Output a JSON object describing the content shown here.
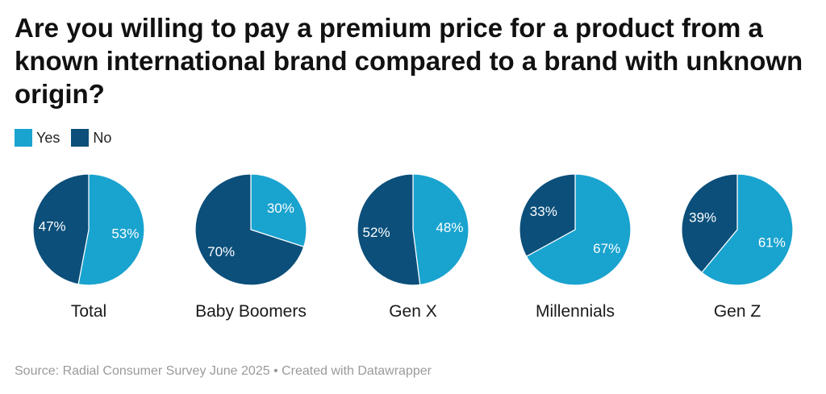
{
  "title": "Are you willing to pay a premium price for a product from a known international brand compared to a brand with unknown origin?",
  "legend": [
    {
      "label": "Yes",
      "color": "#19a3cf"
    },
    {
      "label": "No",
      "color": "#0b4f7a"
    }
  ],
  "source": "Source: Radial Consumer Survey June 2025 • Created with Datawrapper",
  "chart_data": [
    {
      "type": "pie",
      "title": "Total",
      "slices": [
        {
          "name": "Yes",
          "value": 53,
          "label": "53%"
        },
        {
          "name": "No",
          "value": 47,
          "label": "47%"
        }
      ]
    },
    {
      "type": "pie",
      "title": "Baby Boomers",
      "slices": [
        {
          "name": "Yes",
          "value": 30,
          "label": "30%"
        },
        {
          "name": "No",
          "value": 70,
          "label": "70%"
        }
      ]
    },
    {
      "type": "pie",
      "title": "Gen X",
      "slices": [
        {
          "name": "Yes",
          "value": 48,
          "label": "48%"
        },
        {
          "name": "No",
          "value": 52,
          "label": "52%"
        }
      ]
    },
    {
      "type": "pie",
      "title": "Millennials",
      "slices": [
        {
          "name": "Yes",
          "value": 67,
          "label": "67%"
        },
        {
          "name": "No",
          "value": 33,
          "label": "33%"
        }
      ]
    },
    {
      "type": "pie",
      "title": "Gen Z",
      "slices": [
        {
          "name": "Yes",
          "value": 61,
          "label": "61%"
        },
        {
          "name": "No",
          "value": 39,
          "label": "39%"
        }
      ]
    }
  ]
}
